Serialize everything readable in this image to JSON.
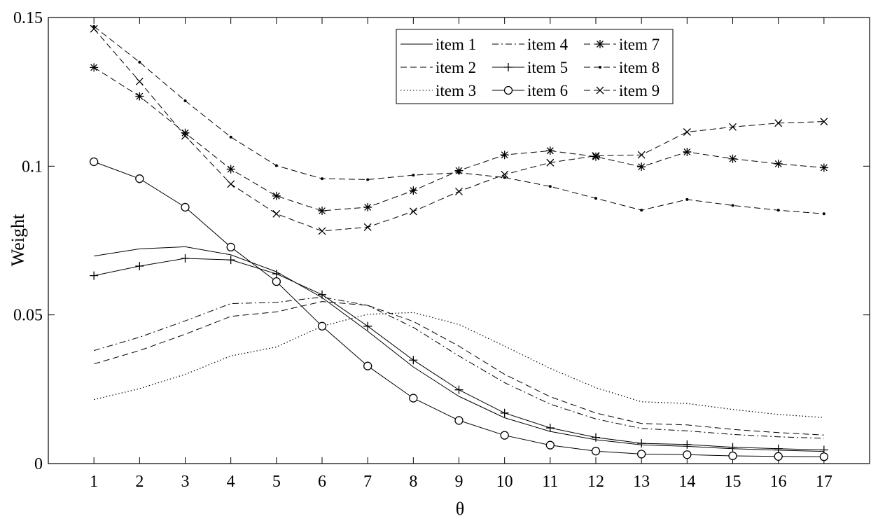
{
  "chart_data": {
    "type": "line",
    "title": "",
    "xlabel": "θ",
    "ylabel": "Weight",
    "xlim": [
      0,
      18
    ],
    "ylim": [
      0,
      0.15
    ],
    "x": [
      1,
      2,
      3,
      4,
      5,
      6,
      7,
      8,
      9,
      10,
      11,
      12,
      13,
      14,
      15,
      16,
      17
    ],
    "x_tick_labels": [
      "1",
      "2",
      "3",
      "4",
      "5",
      "6",
      "7",
      "8",
      "9",
      "10",
      "11",
      "12",
      "13",
      "14",
      "15",
      "16",
      "17"
    ],
    "y_ticks": [
      0,
      0.05,
      0.1,
      0.15
    ],
    "y_tick_labels": [
      "0",
      "0.05",
      "0.1",
      "0.15"
    ],
    "grid": false,
    "legend_position": "top-center",
    "legend_columns": 3,
    "series": [
      {
        "name": "item 1",
        "line_style": "solid",
        "marker": "none",
        "values": [
          0.0698,
          0.0722,
          0.0729,
          0.0702,
          0.0645,
          0.0558,
          0.0445,
          0.0325,
          0.0226,
          0.0154,
          0.0108,
          0.008,
          0.0063,
          0.0058,
          0.005,
          0.0045,
          0.0041
        ]
      },
      {
        "name": "item 2",
        "line_style": "dashed",
        "marker": "none",
        "values": [
          0.0335,
          0.038,
          0.0435,
          0.0495,
          0.051,
          0.0545,
          0.0532,
          0.0478,
          0.0395,
          0.03,
          0.0225,
          0.017,
          0.0135,
          0.013,
          0.0115,
          0.0104,
          0.0096
        ]
      },
      {
        "name": "item 3",
        "line_style": "dotted",
        "marker": "none",
        "values": [
          0.0215,
          0.0252,
          0.03,
          0.0362,
          0.0392,
          0.0462,
          0.0502,
          0.0508,
          0.0468,
          0.0395,
          0.032,
          0.0255,
          0.0208,
          0.0202,
          0.0182,
          0.0165,
          0.0155
        ]
      },
      {
        "name": "item 4",
        "line_style": "dashdot",
        "marker": "none",
        "values": [
          0.038,
          0.0425,
          0.048,
          0.0538,
          0.0542,
          0.056,
          0.0532,
          0.0458,
          0.0362,
          0.0272,
          0.02,
          0.015,
          0.0118,
          0.011,
          0.0098,
          0.009,
          0.0085
        ]
      },
      {
        "name": "item 5",
        "line_style": "solid",
        "marker": "plus",
        "values": [
          0.0632,
          0.0664,
          0.069,
          0.0685,
          0.0638,
          0.0568,
          0.0462,
          0.0348,
          0.0248,
          0.017,
          0.012,
          0.0088,
          0.0068,
          0.0064,
          0.0055,
          0.005,
          0.0046
        ]
      },
      {
        "name": "item 6",
        "line_style": "solid",
        "marker": "circle",
        "values": [
          0.1015,
          0.0958,
          0.0862,
          0.0728,
          0.0612,
          0.0462,
          0.0328,
          0.022,
          0.0145,
          0.0095,
          0.0062,
          0.0042,
          0.0032,
          0.003,
          0.0026,
          0.0024,
          0.0023
        ]
      },
      {
        "name": "item 7",
        "line_style": "dashed",
        "marker": "star",
        "values": [
          0.1332,
          0.1235,
          0.1112,
          0.099,
          0.09,
          0.085,
          0.0862,
          0.0918,
          0.0985,
          0.1038,
          0.1052,
          0.1032,
          0.0998,
          0.1048,
          0.1025,
          0.1008,
          0.0995
        ]
      },
      {
        "name": "item 8",
        "line_style": "dashed",
        "marker": "point",
        "values": [
          0.147,
          0.135,
          0.122,
          0.1098,
          0.1002,
          0.0958,
          0.0955,
          0.097,
          0.0978,
          0.0962,
          0.0932,
          0.0892,
          0.0852,
          0.0888,
          0.0868,
          0.0852,
          0.084
        ]
      },
      {
        "name": "item 9",
        "line_style": "dashed",
        "marker": "cross",
        "values": [
          0.1462,
          0.1285,
          0.1102,
          0.094,
          0.084,
          0.0782,
          0.0795,
          0.0848,
          0.0915,
          0.0972,
          0.1012,
          0.1035,
          0.1038,
          0.1115,
          0.1132,
          0.1145,
          0.115
        ]
      }
    ]
  }
}
